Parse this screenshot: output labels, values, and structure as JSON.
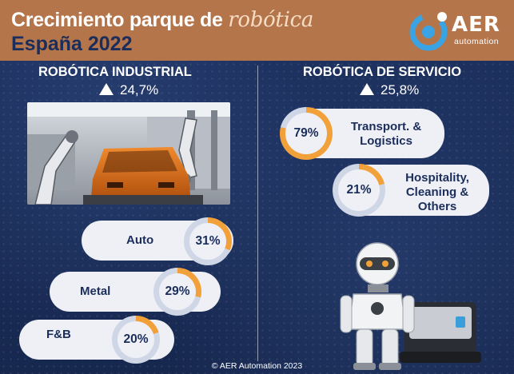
{
  "header": {
    "title_part1": "Crecimiento parque de ",
    "title_script": "robótica",
    "title_line2": "España 2022"
  },
  "logo": {
    "name": "AER",
    "tagline": "automation",
    "icon": "aer-logo-icon",
    "color": "#3aa3e3"
  },
  "industrial": {
    "title": "ROBÓTICA INDUSTRIAL",
    "growth": "24,7%",
    "image": "factory-car-robot-image",
    "segments": [
      {
        "label": "Auto",
        "value": "31%",
        "fraction": 0.31
      },
      {
        "label": "Metal",
        "value": "29%",
        "fraction": 0.29
      },
      {
        "label": "F&B",
        "value": "20%",
        "fraction": 0.2
      }
    ]
  },
  "service": {
    "title": "ROBÓTICA DE SERVICIO",
    "growth": "25,8%",
    "segments": [
      {
        "label": "Transport. &\nLogistics",
        "value": "79%",
        "fraction": 0.79
      },
      {
        "label": "Hospitality,\nCleaning &\nOthers",
        "value": "21%",
        "fraction": 0.21
      }
    ],
    "image": "service-robot-image"
  },
  "footer": {
    "copyright": "© AER Automation 2023"
  },
  "colors": {
    "accent": "#f2a13a",
    "ring_track": "#cfd6e6",
    "navy": "#1b2d5a",
    "header": "#b5754b"
  }
}
